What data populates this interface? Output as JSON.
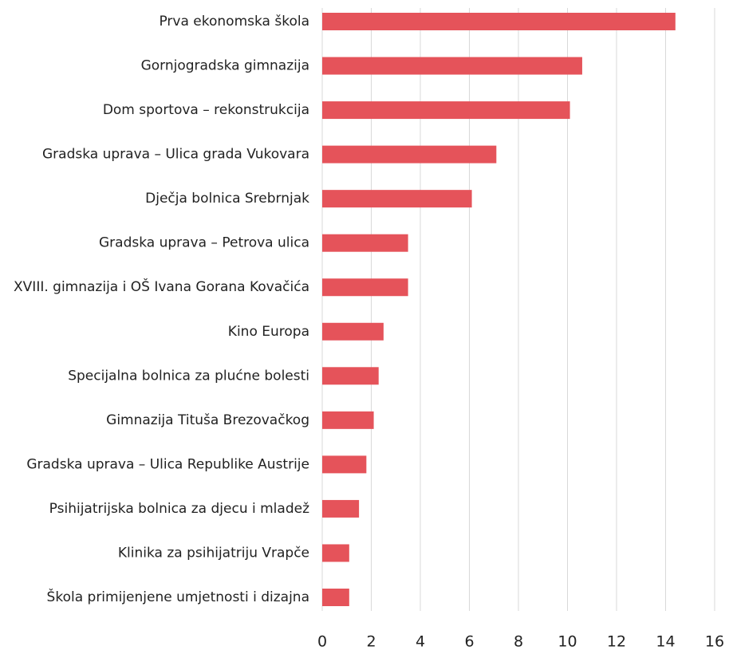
{
  "chart_data": {
    "type": "bar",
    "orientation": "horizontal",
    "categories": [
      "Prva ekonomska škola",
      "Gornjogradska gimnazija",
      "Dom sportova – rekonstrukcija",
      "Gradska uprava – Ulica grada Vukovara",
      "Dječja bolnica Srebrnjak",
      "Gradska uprava – Petrova ulica",
      "XVIII. gimnazija i OŠ Ivana Gorana Kovačića",
      "Kino Europa",
      "Specijalna bolnica za plućne bolesti",
      "Gimnazija Tituša Brezovačkog",
      "Gradska uprava – Ulica Republike Austrije",
      "Psihijatrijska bolnica za djecu i mladež",
      "Klinika za psihijatriju Vrapče",
      "Škola primijenjene umjetnosti i dizajna"
    ],
    "values": [
      14.4,
      10.6,
      10.1,
      7.1,
      6.1,
      3.5,
      3.5,
      2.5,
      2.3,
      2.1,
      1.8,
      1.5,
      1.1,
      1.1
    ],
    "color": "#e5535a",
    "xlim": [
      0,
      16
    ],
    "xticks": [
      0,
      2,
      4,
      6,
      8,
      10,
      12,
      14,
      16
    ],
    "grid": true
  }
}
